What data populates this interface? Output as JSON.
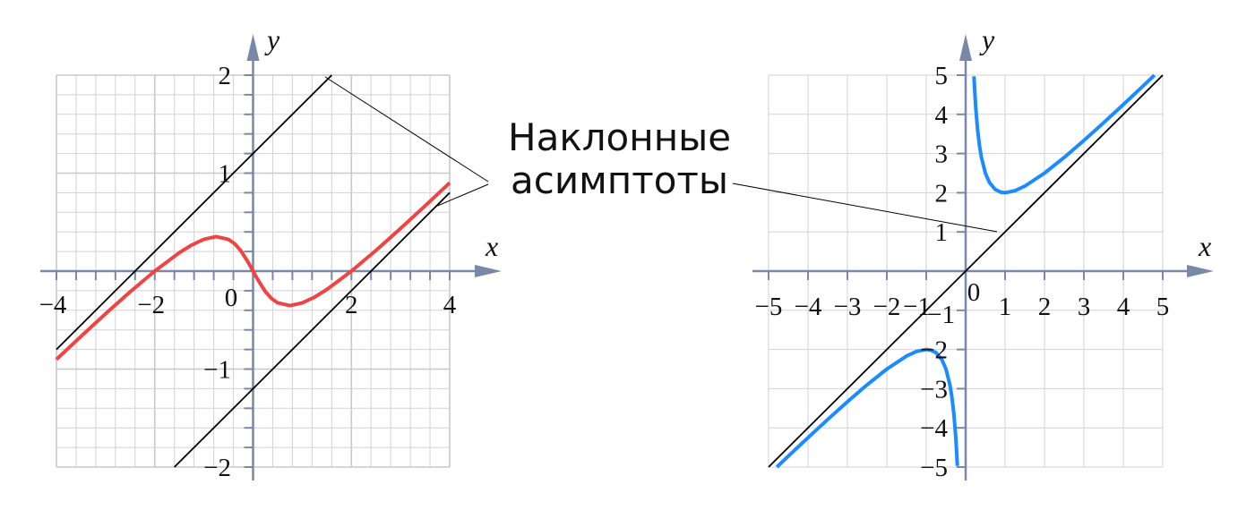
{
  "annotation": {
    "line1": "Наклонные",
    "line2": "асимптоты"
  },
  "colors": {
    "axis": "#7a88a8",
    "grid": "#d2d2d6",
    "left_curve": "#f04444",
    "right_curve": "#1a8cff",
    "asymptote": "#000000"
  },
  "chart_data": [
    {
      "type": "line",
      "xlabel": "x",
      "ylabel": "y",
      "xlim": [
        -4,
        4
      ],
      "ylim": [
        -2,
        2
      ],
      "grid": true,
      "x_ticks": [
        "−4",
        "−2",
        "0",
        "2",
        "4"
      ],
      "x_tick_values": [
        -4,
        -2,
        0,
        2,
        4
      ],
      "y_ticks": [
        "2",
        "1",
        "−1",
        "−2"
      ],
      "y_tick_values": [
        2,
        1,
        -1,
        -2
      ],
      "series": [
        {
          "role": "curve",
          "color": "#f04444",
          "x": [
            -4,
            -3.5,
            -3,
            -2.5,
            -2,
            -1.5,
            -1.25,
            -1,
            -0.75,
            -0.5,
            -0.375,
            -0.25,
            -0.1,
            0,
            0.1,
            0.25,
            0.375,
            0.5,
            0.75,
            1,
            1.25,
            1.5,
            2,
            2.5,
            3,
            3.5,
            4
          ],
          "y": [
            -0.901,
            -0.666,
            -0.435,
            -0.211,
            0.0,
            0.188,
            0.266,
            0.325,
            0.352,
            0.324,
            0.28,
            0.209,
            0.091,
            0,
            -0.091,
            -0.209,
            -0.28,
            -0.324,
            -0.352,
            -0.325,
            -0.266,
            -0.188,
            0.0,
            0.211,
            0.435,
            0.666,
            0.901
          ]
        },
        {
          "role": "asymptote",
          "color": "#000000",
          "x": [
            -4,
            1.6
          ],
          "y": [
            -0.8,
            2
          ]
        },
        {
          "role": "asymptote",
          "color": "#000000",
          "x": [
            -1.6,
            4
          ],
          "y": [
            -2,
            0.8
          ]
        }
      ]
    },
    {
      "type": "line",
      "xlabel": "x",
      "ylabel": "y",
      "xlim": [
        -5,
        5
      ],
      "ylim": [
        -5,
        5
      ],
      "grid": true,
      "x_ticks": [
        "−5",
        "−4",
        "−3",
        "−2",
        "−1",
        "1",
        "2",
        "3",
        "4",
        "5"
      ],
      "x_tick_values": [
        -5,
        -4,
        -3,
        -2,
        -1,
        1,
        2,
        3,
        4,
        5
      ],
      "y_ticks": [
        "5",
        "4",
        "3",
        "2",
        "1",
        "−1",
        "−2",
        "−3",
        "−4",
        "−5"
      ],
      "y_tick_values": [
        5,
        4,
        3,
        2,
        1,
        -1,
        -2,
        -3,
        -4,
        -5
      ],
      "origin_label": "0",
      "series": [
        {
          "role": "curve",
          "color": "#1a8cff",
          "x": [
            0.21,
            0.25,
            0.3,
            0.35,
            0.4,
            0.5,
            0.6,
            0.75,
            0.9,
            1,
            1.25,
            1.5,
            2,
            2.5,
            3,
            3.5,
            4,
            4.5,
            4.79
          ],
          "y": [
            4.972,
            4.25,
            3.633,
            3.207,
            2.9,
            2.5,
            2.267,
            2.083,
            2.011,
            2,
            2.05,
            2.167,
            2.5,
            2.9,
            3.333,
            3.786,
            4.25,
            4.722,
            5.0
          ]
        },
        {
          "role": "curve",
          "color": "#1a8cff",
          "x": [
            -4.79,
            -4.5,
            -4,
            -3.5,
            -3,
            -2.5,
            -2,
            -1.5,
            -1.25,
            -1,
            -0.9,
            -0.75,
            -0.6,
            -0.5,
            -0.4,
            -0.35,
            -0.3,
            -0.25,
            -0.21
          ],
          "y": [
            -5.0,
            -4.722,
            -4.25,
            -3.786,
            -3.333,
            -2.9,
            -2.5,
            -2.167,
            -2.05,
            -2,
            -2.011,
            -2.083,
            -2.267,
            -2.5,
            -2.9,
            -3.207,
            -3.633,
            -4.25,
            -4.972
          ]
        },
        {
          "role": "asymptote",
          "color": "#000000",
          "x": [
            -5,
            5
          ],
          "y": [
            -5,
            5
          ]
        }
      ]
    }
  ]
}
